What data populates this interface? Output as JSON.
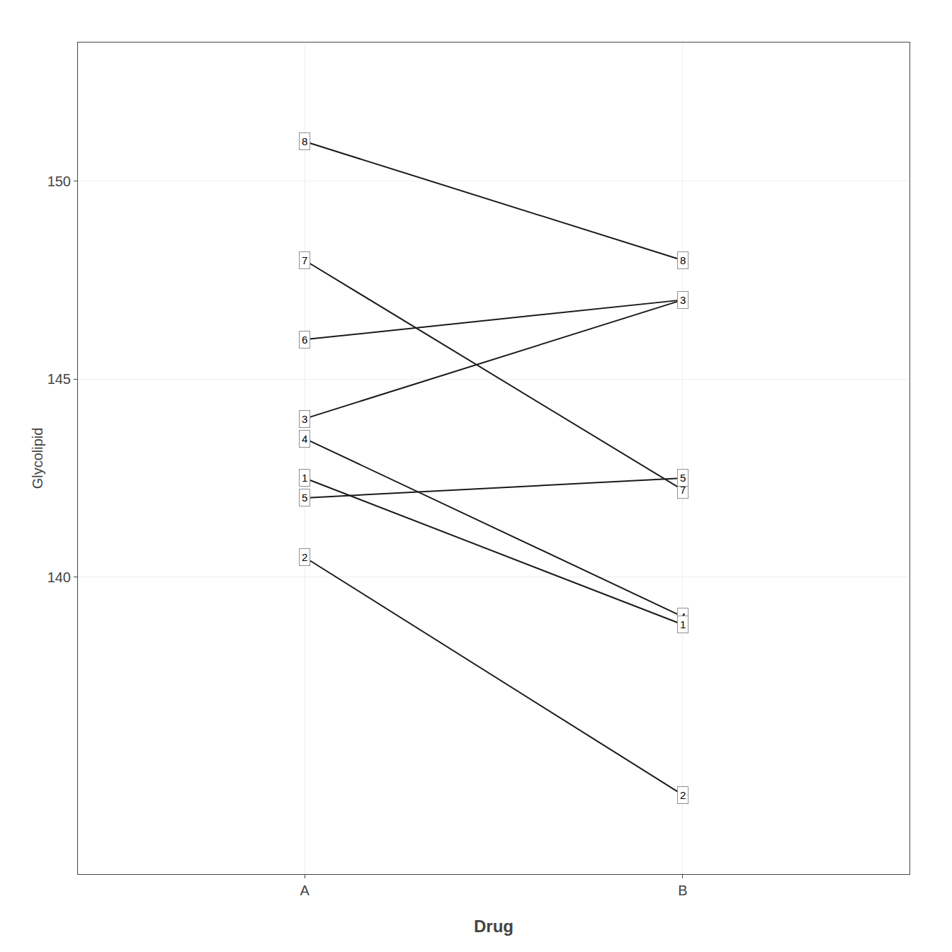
{
  "chart_data": {
    "type": "slope",
    "categories": [
      "A",
      "B"
    ],
    "series": [
      {
        "name": "8",
        "color": "#1a1a1a",
        "values": [
          151.0,
          148.0
        ]
      },
      {
        "name": "7",
        "color": "#1a1a1a",
        "values": [
          148.0,
          142.2
        ]
      },
      {
        "name": "6",
        "color": "#1a1a1a",
        "values": [
          146.0,
          147.0
        ]
      },
      {
        "name": "3",
        "color": "#1a1a1a",
        "values": [
          144.0,
          147.0
        ]
      },
      {
        "name": "4",
        "color": "#1a1a1a",
        "values": [
          143.5,
          139.0
        ]
      },
      {
        "name": "1",
        "color": "#1a1a1a",
        "values": [
          142.5,
          138.8
        ]
      },
      {
        "name": "5",
        "color": "#1a1a1a",
        "values": [
          142.0,
          142.5
        ]
      },
      {
        "name": "2",
        "color": "#1a1a1a",
        "values": [
          140.5,
          134.5
        ]
      }
    ],
    "x_label": "Drug",
    "y_label": "Glycolipid",
    "ylim": [
      132.5,
      153.5
    ],
    "yticks": [
      140,
      145,
      150
    ],
    "grid": true
  }
}
